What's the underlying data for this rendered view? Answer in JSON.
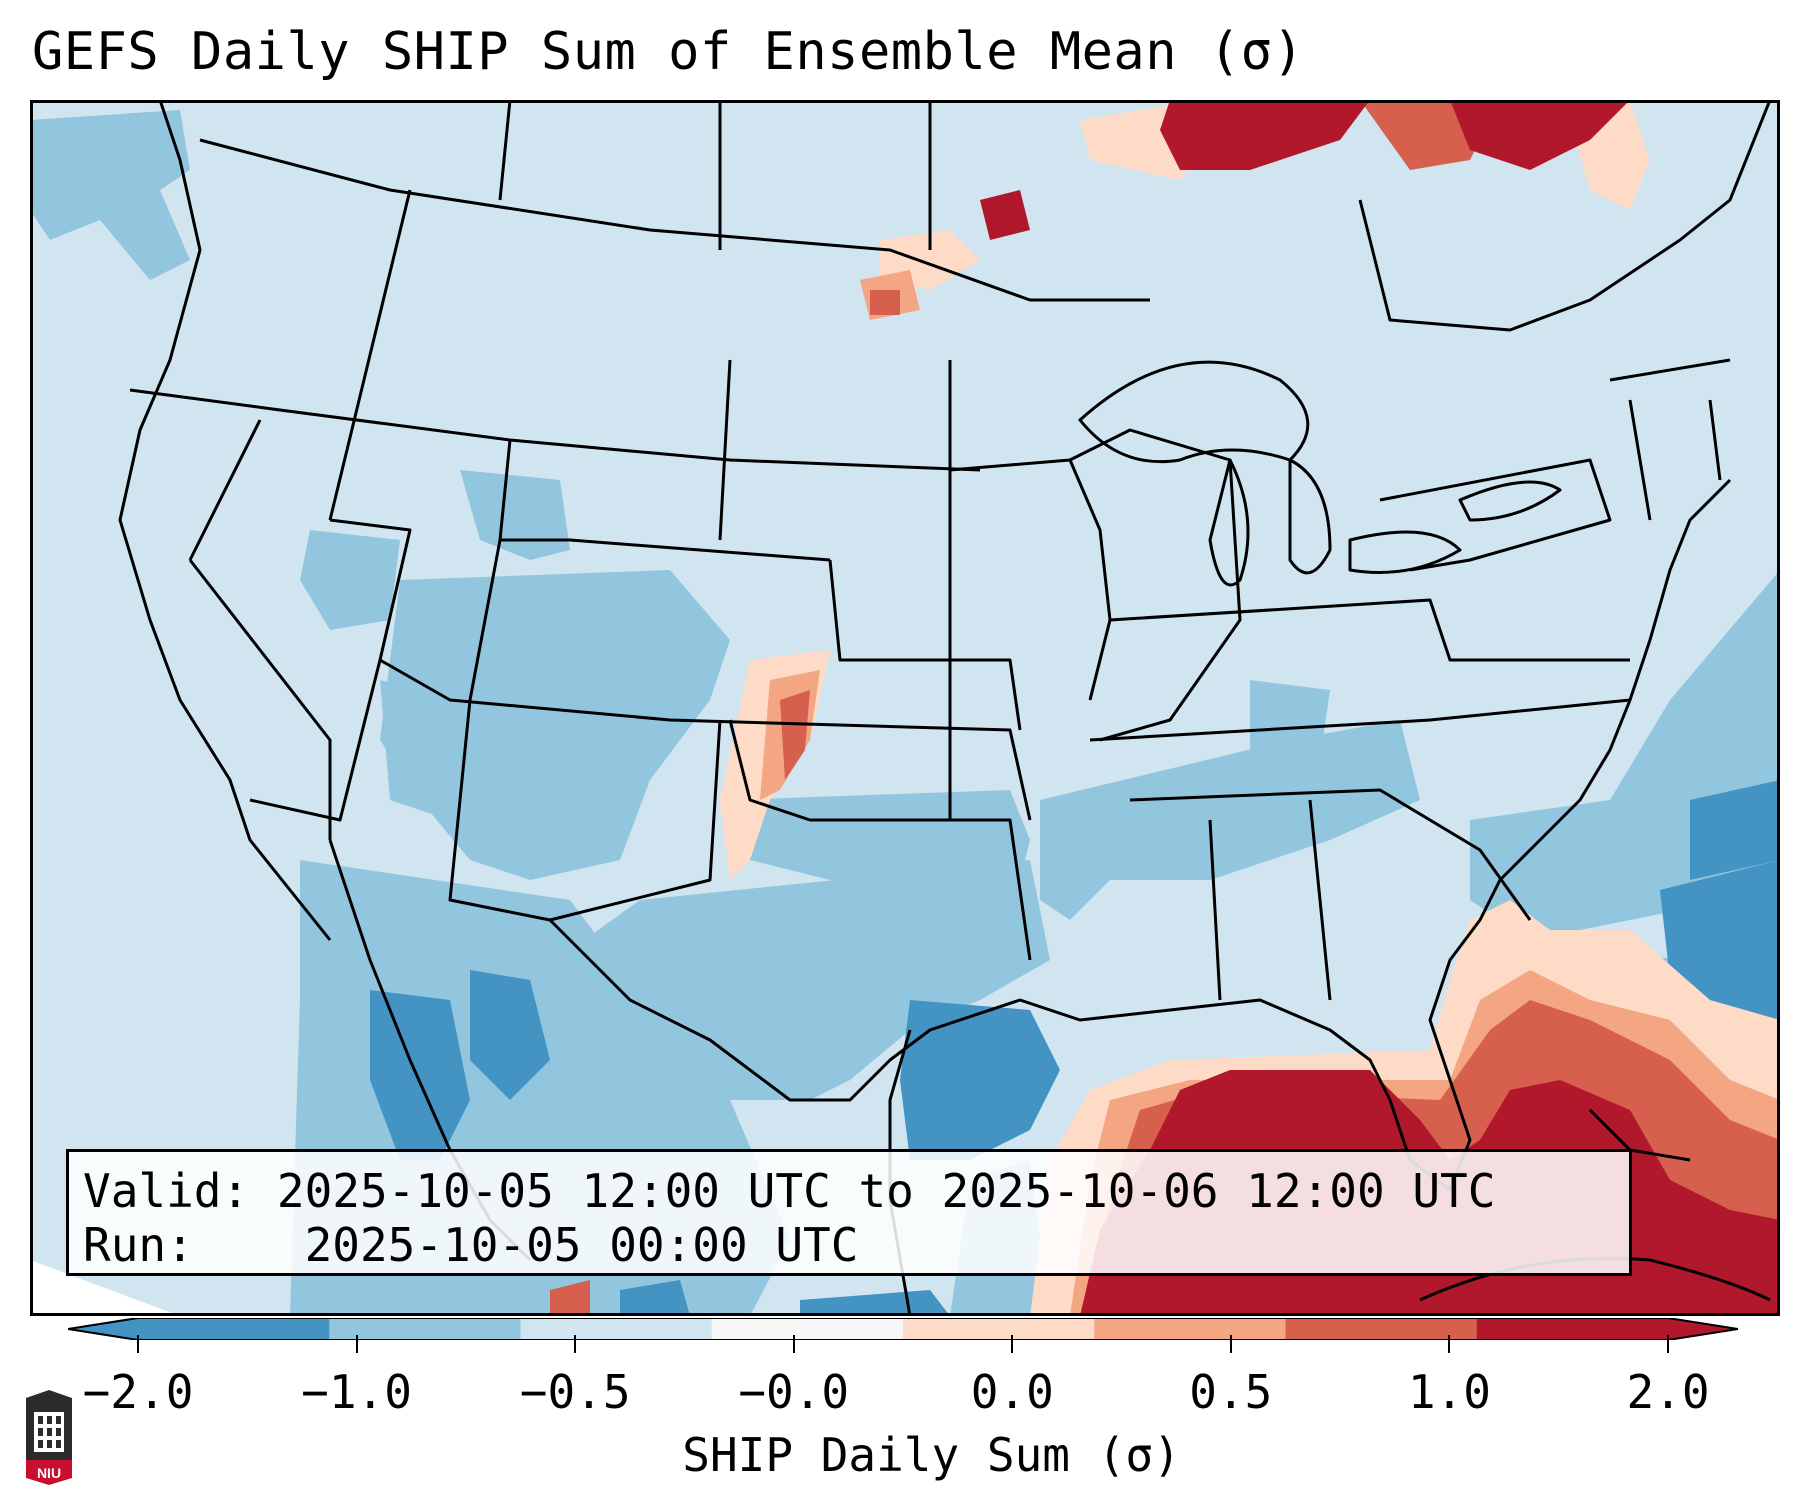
{
  "title": "GEFS Daily SHIP Sum of Ensemble Mean (σ)",
  "info": {
    "valid_label": "Valid:",
    "valid_value": "2025-10-05 12:00 UTC to 2025-10-06 12:00 UTC",
    "run_label": "Run:",
    "run_value": "2025-10-05 00:00 UTC"
  },
  "colorbar": {
    "label": "SHIP Daily Sum (σ)",
    "ticks": [
      "−2.0",
      "−1.0",
      "−0.5",
      "−0.0",
      "0.0",
      "0.5",
      "1.0",
      "2.0"
    ],
    "colors": [
      "#4393c3",
      "#92c5de",
      "#d1e5f0",
      "#f7f7f7",
      "#fddbc7",
      "#f4a582",
      "#d6604d",
      "#b2182b"
    ],
    "extend": "both"
  },
  "map": {
    "region": "CONUS",
    "ocean_color": "#d1e5f0"
  },
  "logo": {
    "text": "NIU",
    "icon": "university-seal-icon"
  }
}
